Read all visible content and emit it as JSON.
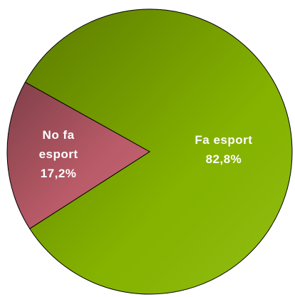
{
  "chart_data": {
    "type": "pie",
    "categories": [
      "Fa esport",
      "No fa esport"
    ],
    "values": [
      82.8,
      17.2
    ],
    "value_labels": [
      "82,8%",
      "17,2%"
    ],
    "colors": [
      "#8cbc00",
      "#c4606e"
    ]
  }
}
